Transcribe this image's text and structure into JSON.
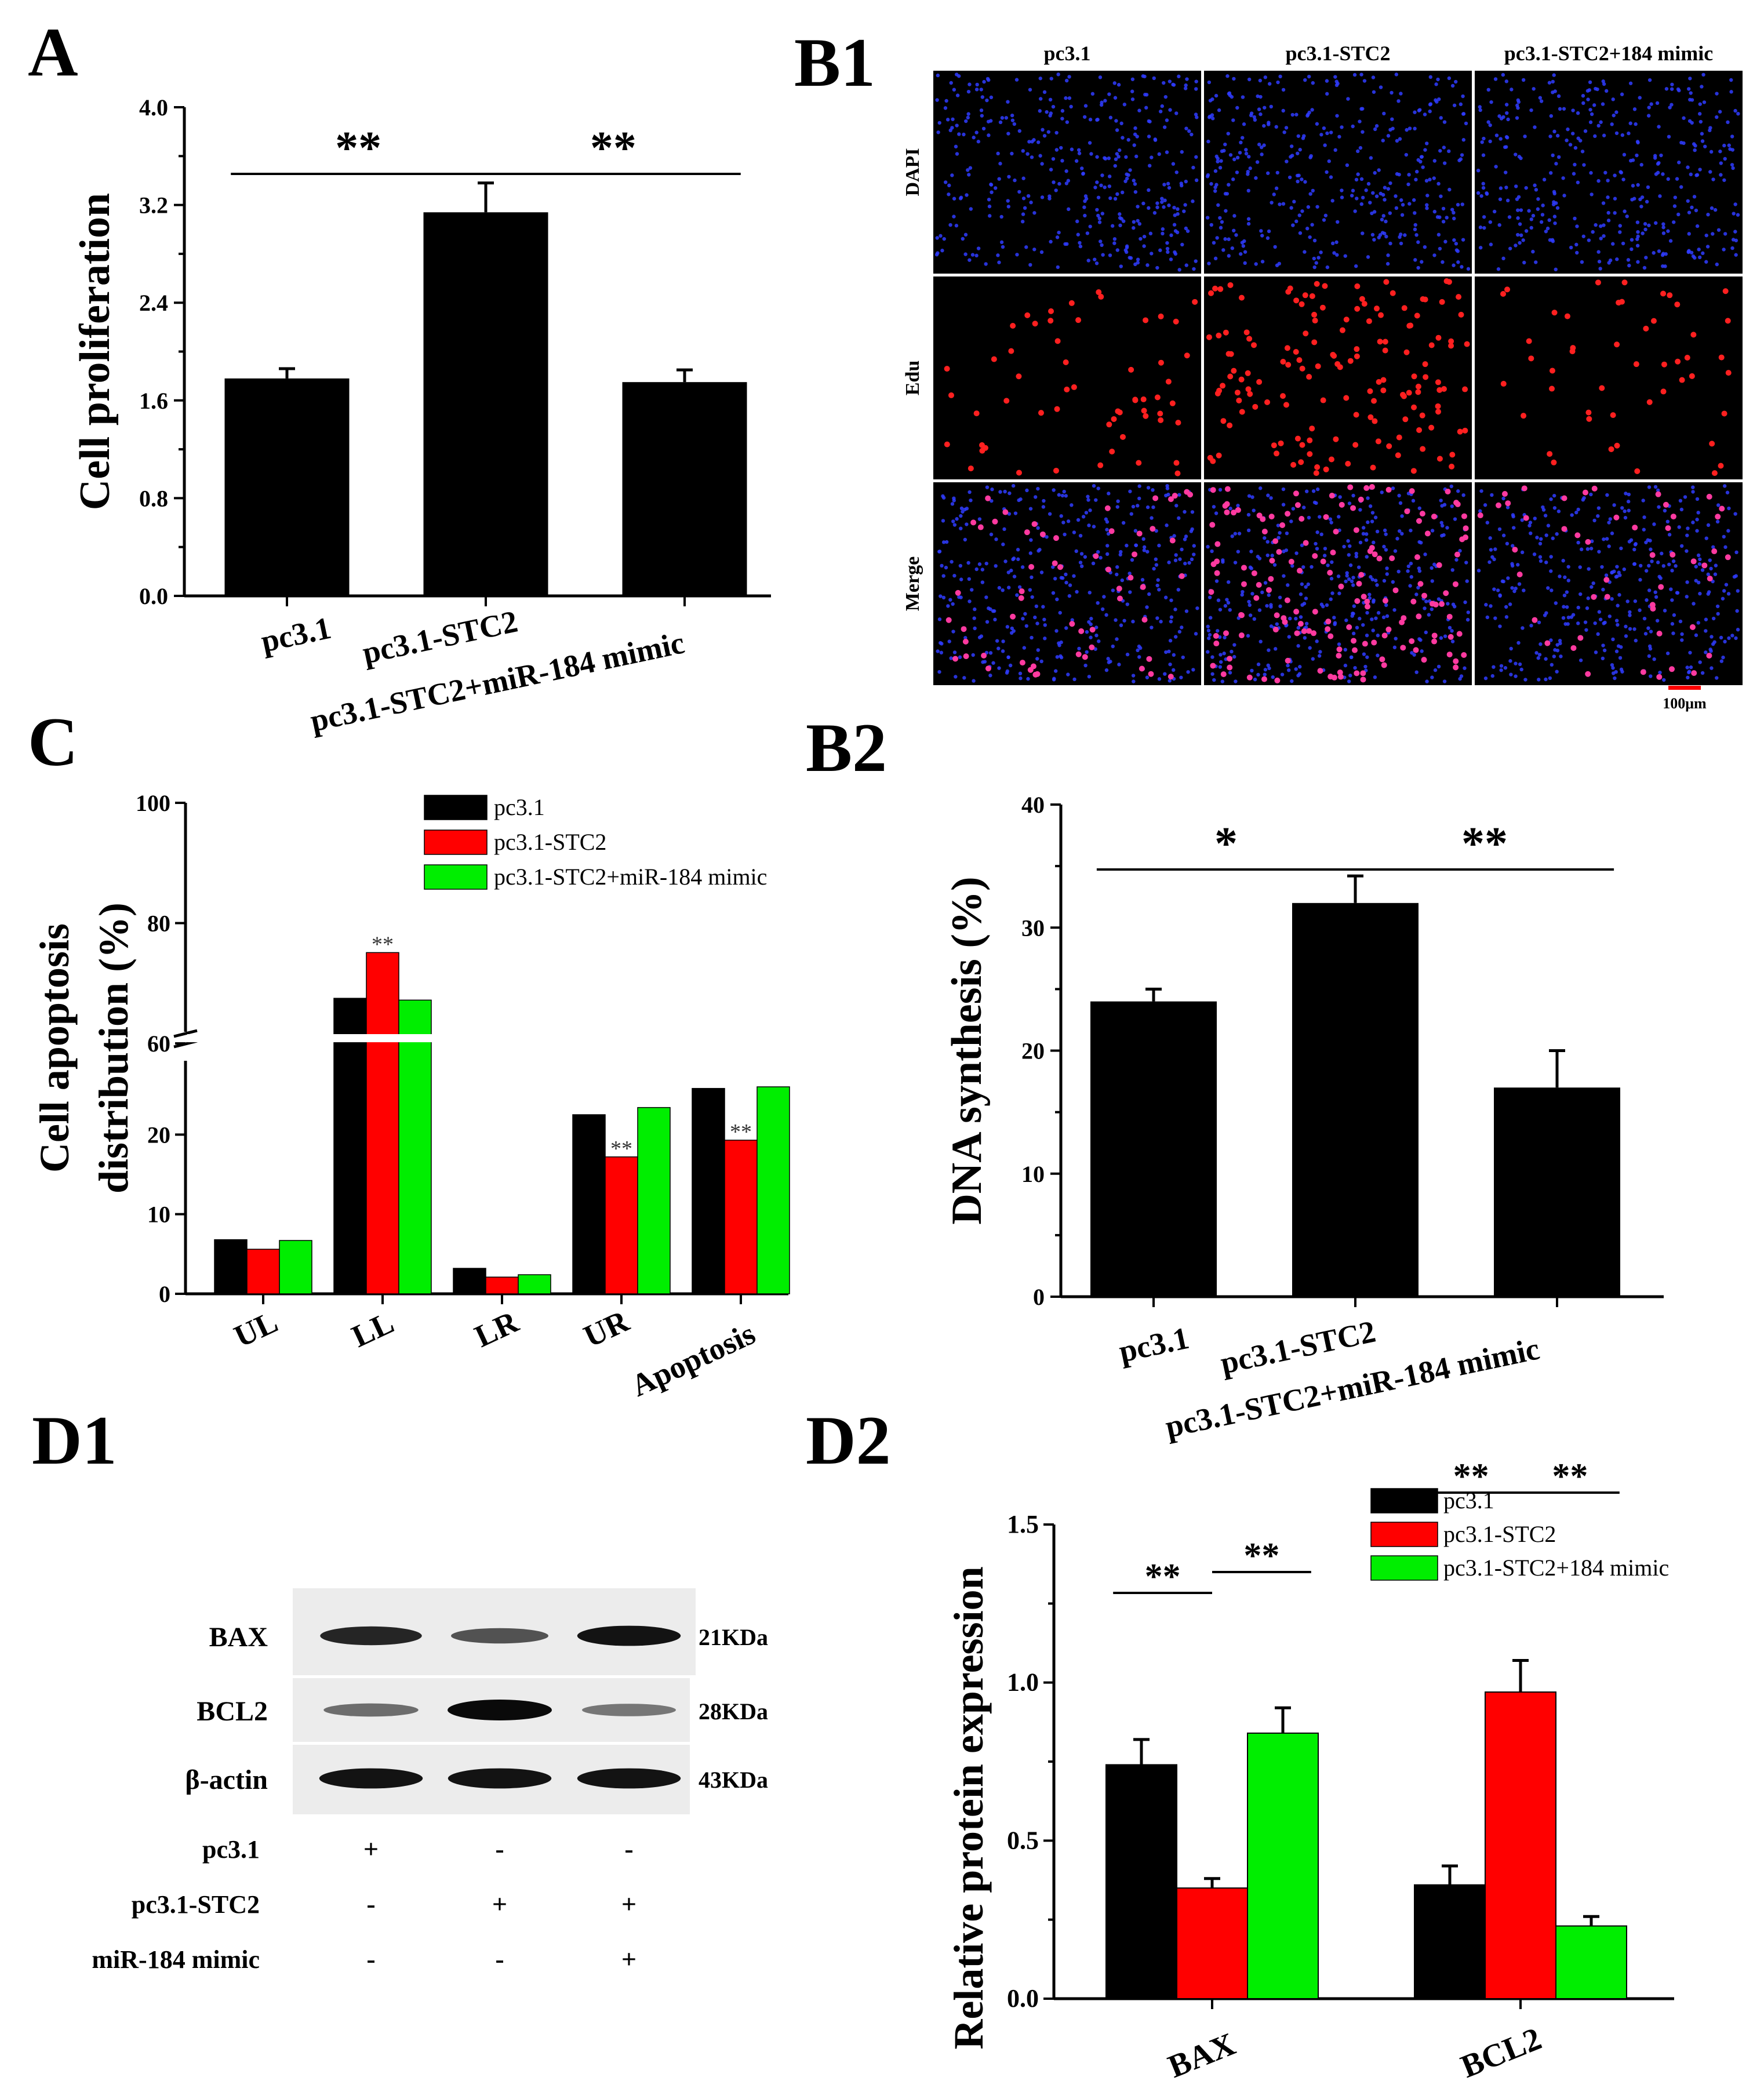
{
  "panels": {
    "A": "A",
    "B1": "B1",
    "B2": "B2",
    "C": "C",
    "D1": "D1",
    "D2": "D2"
  },
  "colors": {
    "black": "#000000",
    "red": "#ff0000",
    "green": "#00ee00",
    "blue": "#2f3cff",
    "edu": "#ff2020"
  },
  "chart_data": [
    {
      "id": "A",
      "type": "bar",
      "title": "",
      "ylabel": "Cell proliferation",
      "xlabel": "",
      "categories": [
        "pc3.1",
        "pc3.1-STC2",
        "pc3.1-STC2+miR-184 mimic"
      ],
      "values": [
        1.78,
        3.14,
        1.75
      ],
      "errors": [
        0.08,
        0.24,
        0.1
      ],
      "ylim": [
        0,
        4.0
      ],
      "yticks": [
        "0.0",
        "0.8",
        "1.6",
        "2.4",
        "3.2",
        "4.0"
      ],
      "significance": [
        {
          "from": 0,
          "to": 1,
          "label": "**"
        },
        {
          "from": 1,
          "to": 2,
          "label": "**"
        }
      ]
    },
    {
      "id": "B2",
      "type": "bar",
      "title": "",
      "ylabel": "DNA synthesis (%)",
      "xlabel": "",
      "categories": [
        "pc3.1",
        "pc3.1-STC2",
        "pc3.1-STC2+miR-184 mimic"
      ],
      "values": [
        24,
        32,
        17
      ],
      "errors": [
        1,
        2.2,
        3
      ],
      "ylim": [
        0,
        40
      ],
      "yticks": [
        "0",
        "10",
        "20",
        "30",
        "40"
      ],
      "significance": [
        {
          "from": 0,
          "to": 1,
          "label": "*"
        },
        {
          "from": 1,
          "to": 2,
          "label": "**"
        }
      ]
    },
    {
      "id": "C",
      "type": "bar",
      "title": "",
      "ylabel": "Cell apoptosis distribution (%)",
      "ylabel_lines": [
        "Cell apoptosis",
        "distribution (%)"
      ],
      "xlabel": "",
      "categories": [
        "UL",
        "LL",
        "LR",
        "UR",
        "Apoptosis"
      ],
      "series": [
        {
          "name": "pc3.1",
          "values": [
            6.8,
            67.5,
            3.2,
            22.5,
            25.8
          ]
        },
        {
          "name": "pc3.1-STC2",
          "values": [
            5.6,
            75.1,
            2.1,
            17.2,
            19.3
          ]
        },
        {
          "name": "pc3.1-STC2+miR-184 mimic",
          "values": [
            6.7,
            67.2,
            2.4,
            23.4,
            26.0
          ]
        }
      ],
      "marks": [
        {
          "category": 1,
          "series": 1,
          "label": "**"
        },
        {
          "category": 3,
          "series": 1,
          "label": "**"
        },
        {
          "category": 4,
          "series": 1,
          "label": "**"
        }
      ],
      "axis_break": {
        "lower": [
          0,
          30
        ],
        "upper": [
          60,
          100
        ]
      },
      "yticks_lower": [
        "0",
        "10",
        "20"
      ],
      "yticks_upper": [
        "60",
        "80",
        "100"
      ],
      "legend": "top-right"
    },
    {
      "id": "D2",
      "type": "bar",
      "title": "",
      "ylabel": "Relative protein expression",
      "xlabel": "",
      "categories": [
        "BAX",
        "BCL2"
      ],
      "series": [
        {
          "name": "pc3.1",
          "values": [
            0.74,
            0.36
          ],
          "errors": [
            0.08,
            0.06
          ]
        },
        {
          "name": "pc3.1-STC2",
          "values": [
            0.35,
            0.97
          ],
          "errors": [
            0.03,
            0.1
          ]
        },
        {
          "name": "pc3.1-STC2+184 mimic",
          "values": [
            0.84,
            0.23
          ],
          "errors": [
            0.08,
            0.03
          ]
        }
      ],
      "ylim": [
        0,
        1.5
      ],
      "yticks": [
        "0.0",
        "0.5",
        "1.0",
        "1.5"
      ],
      "significance": [
        {
          "category": 0,
          "from": 0,
          "to": 1,
          "label": "**"
        },
        {
          "category": 0,
          "from": 1,
          "to": 2,
          "label": "**"
        },
        {
          "category": 1,
          "from": 0,
          "to": 1,
          "label": "**"
        },
        {
          "category": 1,
          "from": 1,
          "to": 2,
          "label": "**"
        }
      ],
      "legend": "top-right"
    }
  ],
  "b1": {
    "columns": [
      "pc3.1",
      "pc3.1-STC2",
      "pc3.1-STC2+184 mimic"
    ],
    "rows": [
      "DAPI",
      "Edu",
      "Merge"
    ],
    "scale_bar": "100μm",
    "edu_density": [
      0.6,
      1.6,
      0.5
    ]
  },
  "d1": {
    "proteins": [
      {
        "name": "BAX",
        "size": "21KDa",
        "intensity": [
          0.85,
          0.6,
          0.95
        ]
      },
      {
        "name": "BCL2",
        "size": "28KDa",
        "intensity": [
          0.45,
          1.0,
          0.4
        ]
      },
      {
        "name": "β-actin",
        "size": "43KDa",
        "intensity": [
          0.95,
          0.95,
          0.95
        ]
      }
    ],
    "conditions": [
      {
        "name": "pc3.1",
        "signs": [
          "+",
          "-",
          "-"
        ]
      },
      {
        "name": "pc3.1-STC2",
        "signs": [
          "-",
          "+",
          "+"
        ]
      },
      {
        "name": "miR-184 mimic",
        "signs": [
          "-",
          "-",
          "+"
        ]
      }
    ]
  }
}
